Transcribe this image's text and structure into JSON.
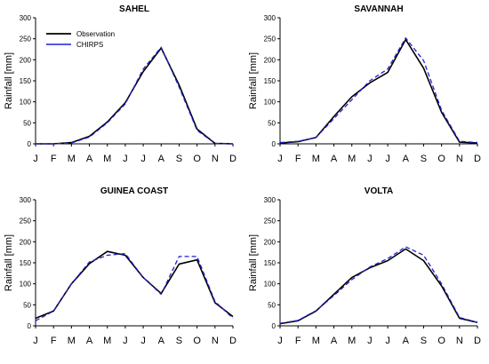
{
  "figure": {
    "colors": {
      "observation": "#000000",
      "chirps": "#1f1fd1"
    }
  },
  "chart_data": [
    {
      "type": "line",
      "title": "SAHEL",
      "ylabel": "Rainfall [mm]",
      "xlabel": "",
      "ylim": [
        0,
        300
      ],
      "yticks": [
        0,
        50,
        100,
        150,
        200,
        250,
        300
      ],
      "categories": [
        "J",
        "F",
        "M",
        "A",
        "M",
        "J",
        "J",
        "A",
        "S",
        "O",
        "N",
        "D"
      ],
      "legend": {
        "position": "top-left",
        "entries": [
          "Observation",
          "CHIRPS"
        ]
      },
      "series": [
        {
          "name": "Observation",
          "style": "solid",
          "values": [
            0,
            0,
            3,
            18,
            52,
            98,
            172,
            228,
            140,
            35,
            1,
            0
          ]
        },
        {
          "name": "CHIRPS",
          "style": "dashed",
          "values": [
            0,
            0,
            2,
            16,
            50,
            95,
            178,
            230,
            135,
            32,
            1,
            0
          ]
        }
      ]
    },
    {
      "type": "line",
      "title": "SAVANNAH",
      "ylabel": "Rainfall [mm]",
      "xlabel": "",
      "ylim": [
        0,
        300
      ],
      "yticks": [
        0,
        50,
        100,
        150,
        200,
        250,
        300
      ],
      "categories": [
        "J",
        "F",
        "M",
        "A",
        "M",
        "J",
        "J",
        "A",
        "S",
        "O",
        "N",
        "D"
      ],
      "series": [
        {
          "name": "Observation",
          "style": "solid",
          "values": [
            2,
            5,
            15,
            65,
            112,
            145,
            170,
            248,
            180,
            75,
            4,
            2
          ]
        },
        {
          "name": "CHIRPS",
          "style": "dashed",
          "values": [
            3,
            6,
            15,
            60,
            105,
            150,
            178,
            252,
            198,
            80,
            6,
            3
          ]
        }
      ]
    },
    {
      "type": "line",
      "title": "GUINEA COAST",
      "ylabel": "Rainfall [mm]",
      "xlabel": "",
      "ylim": [
        0,
        300
      ],
      "yticks": [
        0,
        50,
        100,
        150,
        200,
        250,
        300
      ],
      "categories": [
        "J",
        "F",
        "M",
        "A",
        "M",
        "J",
        "J",
        "A",
        "S",
        "O",
        "N",
        "D"
      ],
      "series": [
        {
          "name": "Observation",
          "style": "solid",
          "values": [
            18,
            35,
            100,
            148,
            177,
            168,
            115,
            77,
            147,
            157,
            55,
            22
          ]
        },
        {
          "name": "CHIRPS",
          "style": "dashed",
          "values": [
            12,
            35,
            100,
            152,
            168,
            172,
            115,
            75,
            165,
            165,
            58,
            18
          ]
        }
      ]
    },
    {
      "type": "line",
      "title": "VOLTA",
      "ylabel": "Rainfall [mm]",
      "xlabel": "",
      "ylim": [
        0,
        300
      ],
      "yticks": [
        0,
        50,
        100,
        150,
        200,
        250,
        300
      ],
      "categories": [
        "J",
        "F",
        "M",
        "A",
        "M",
        "J",
        "J",
        "A",
        "S",
        "O",
        "N",
        "D"
      ],
      "series": [
        {
          "name": "Observation",
          "style": "solid",
          "values": [
            5,
            12,
            35,
            75,
            115,
            138,
            155,
            183,
            155,
            95,
            18,
            8
          ]
        },
        {
          "name": "CHIRPS",
          "style": "dashed",
          "values": [
            6,
            13,
            36,
            72,
            110,
            140,
            160,
            188,
            168,
            100,
            20,
            8
          ]
        }
      ]
    }
  ]
}
